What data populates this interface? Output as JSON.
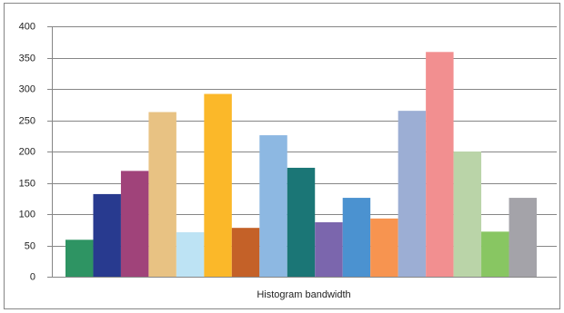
{
  "chart_data": {
    "type": "bar",
    "x_label": "Histogram bandwidth",
    "values": [
      59,
      132,
      169,
      263,
      71,
      292,
      78,
      226,
      174,
      87,
      126,
      93,
      265,
      359,
      200,
      72,
      126
    ],
    "colors": [
      "#2e9463",
      "#283a8f",
      "#a0437a",
      "#e8c283",
      "#bde3f4",
      "#fbb829",
      "#c46128",
      "#8db8e2",
      "#1b7676",
      "#7b66ad",
      "#4b92d0",
      "#f79450",
      "#9caed4",
      "#f28f90",
      "#bad4a8",
      "#88c662",
      "#a4a3a9"
    ],
    "ylim": [
      0,
      400
    ],
    "yticks": [
      0,
      50,
      100,
      150,
      200,
      250,
      300,
      350,
      400
    ],
    "grid": true
  }
}
